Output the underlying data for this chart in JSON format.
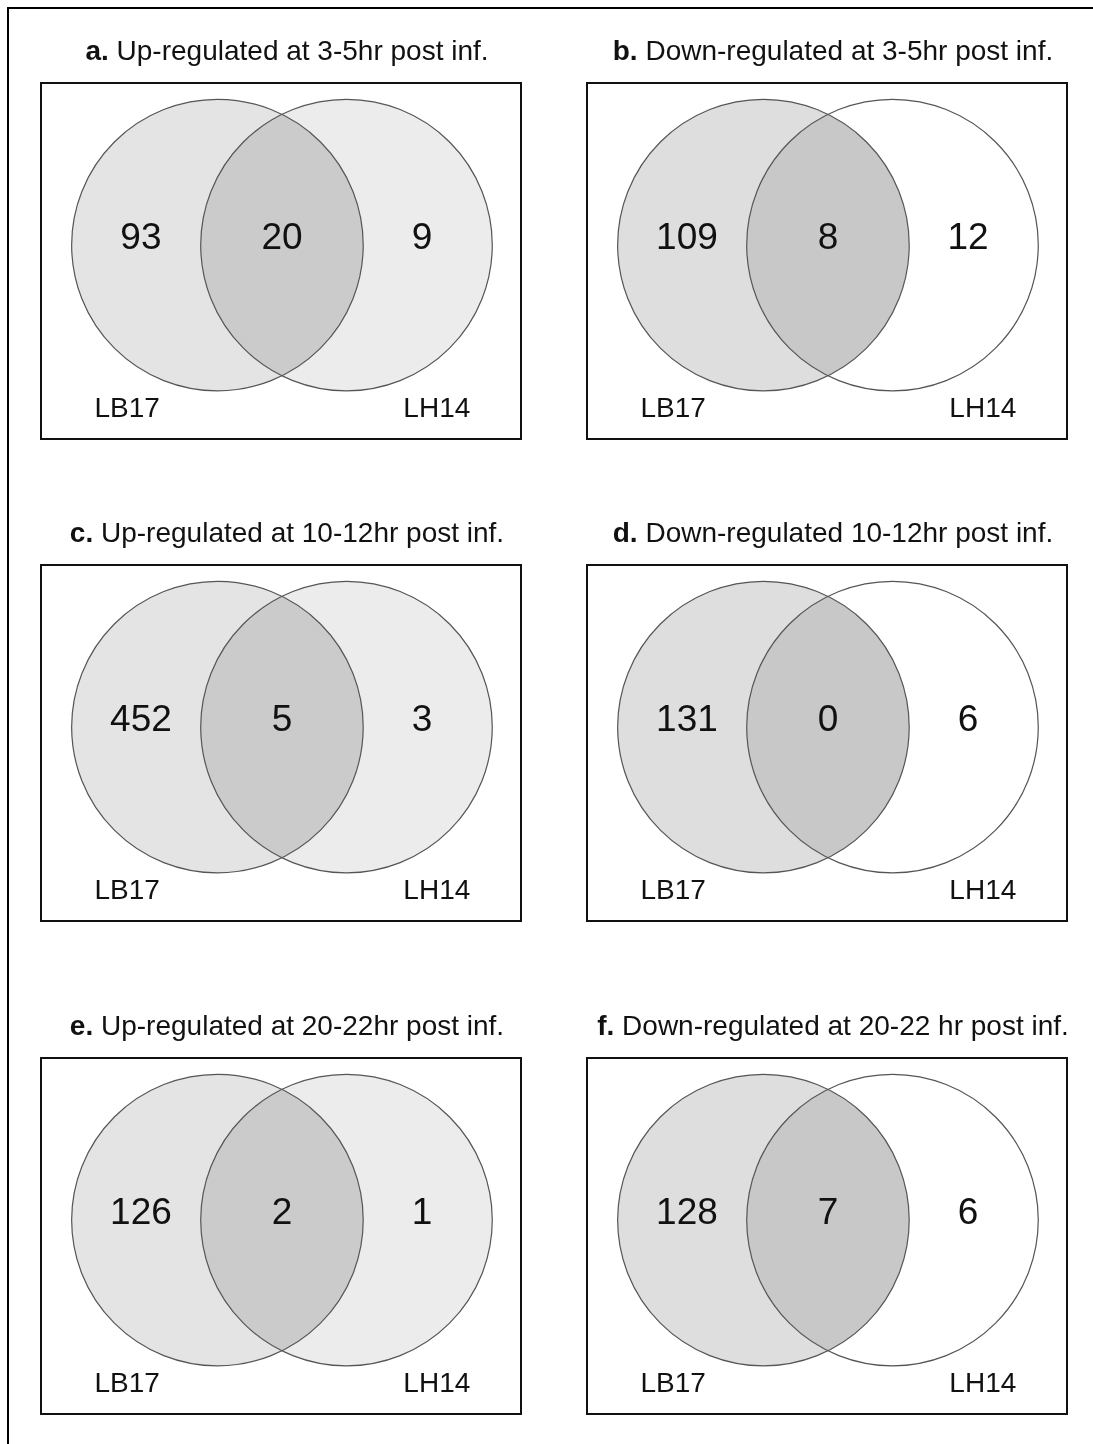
{
  "chart_data": [
    {
      "type": "other",
      "title": "a. Up-regulated at 3-5hr post inf.",
      "categories": [
        null,
        null,
        null
      ],
      "values": [
        93,
        20,
        9
      ],
      "colors": [
        "#e4e4e4",
        "#cbcbcb",
        "#ececec"
      ],
      "data_labels": true,
      "annotations": [
        "LB17",
        "LH14"
      ]
    },
    {
      "type": "other",
      "title": "b. Down-regulated at 3-5hr post inf.",
      "categories": [
        null,
        null,
        null
      ],
      "values": [
        109,
        8,
        12
      ],
      "colors": [
        "#dedede",
        "#c8c8c8",
        "#ffffff"
      ],
      "data_labels": true,
      "annotations": [
        "LB17",
        "LH14"
      ]
    },
    {
      "type": "other",
      "title": "c. Up-regulated at 10-12hr post inf.",
      "categories": [
        null,
        null,
        null
      ],
      "values": [
        452,
        5,
        3
      ],
      "colors": [
        "#e4e4e4",
        "#cbcbcb",
        "#ececec"
      ],
      "data_labels": true,
      "annotations": [
        "LB17",
        "LH14"
      ]
    },
    {
      "type": "other",
      "title": "d. Down-regulated 10-12hr post inf.",
      "categories": [
        null,
        null,
        null
      ],
      "values": [
        131,
        0,
        6
      ],
      "colors": [
        "#dedede",
        "#c8c8c8",
        "#ffffff"
      ],
      "data_labels": true,
      "annotations": [
        "LB17",
        "LH14"
      ]
    },
    {
      "type": "other",
      "title": "e. Up-regulated at 20-22hr post inf.",
      "categories": [
        null,
        null,
        null
      ],
      "values": [
        126,
        2,
        1
      ],
      "colors": [
        "#e4e4e4",
        "#cbcbcb",
        "#ececec"
      ],
      "data_labels": true,
      "annotations": [
        "LB17",
        "LH14"
      ]
    },
    {
      "type": "other",
      "title": "f. Down-regulated at 20-22 hr post inf.",
      "categories": [
        null,
        null,
        null
      ],
      "values": [
        128,
        7,
        6
      ],
      "colors": [
        "#dedede",
        "#c8c8c8",
        "#ffffff"
      ],
      "data_labels": true,
      "annotations": [
        "LB17",
        "LH14"
      ]
    }
  ]
}
